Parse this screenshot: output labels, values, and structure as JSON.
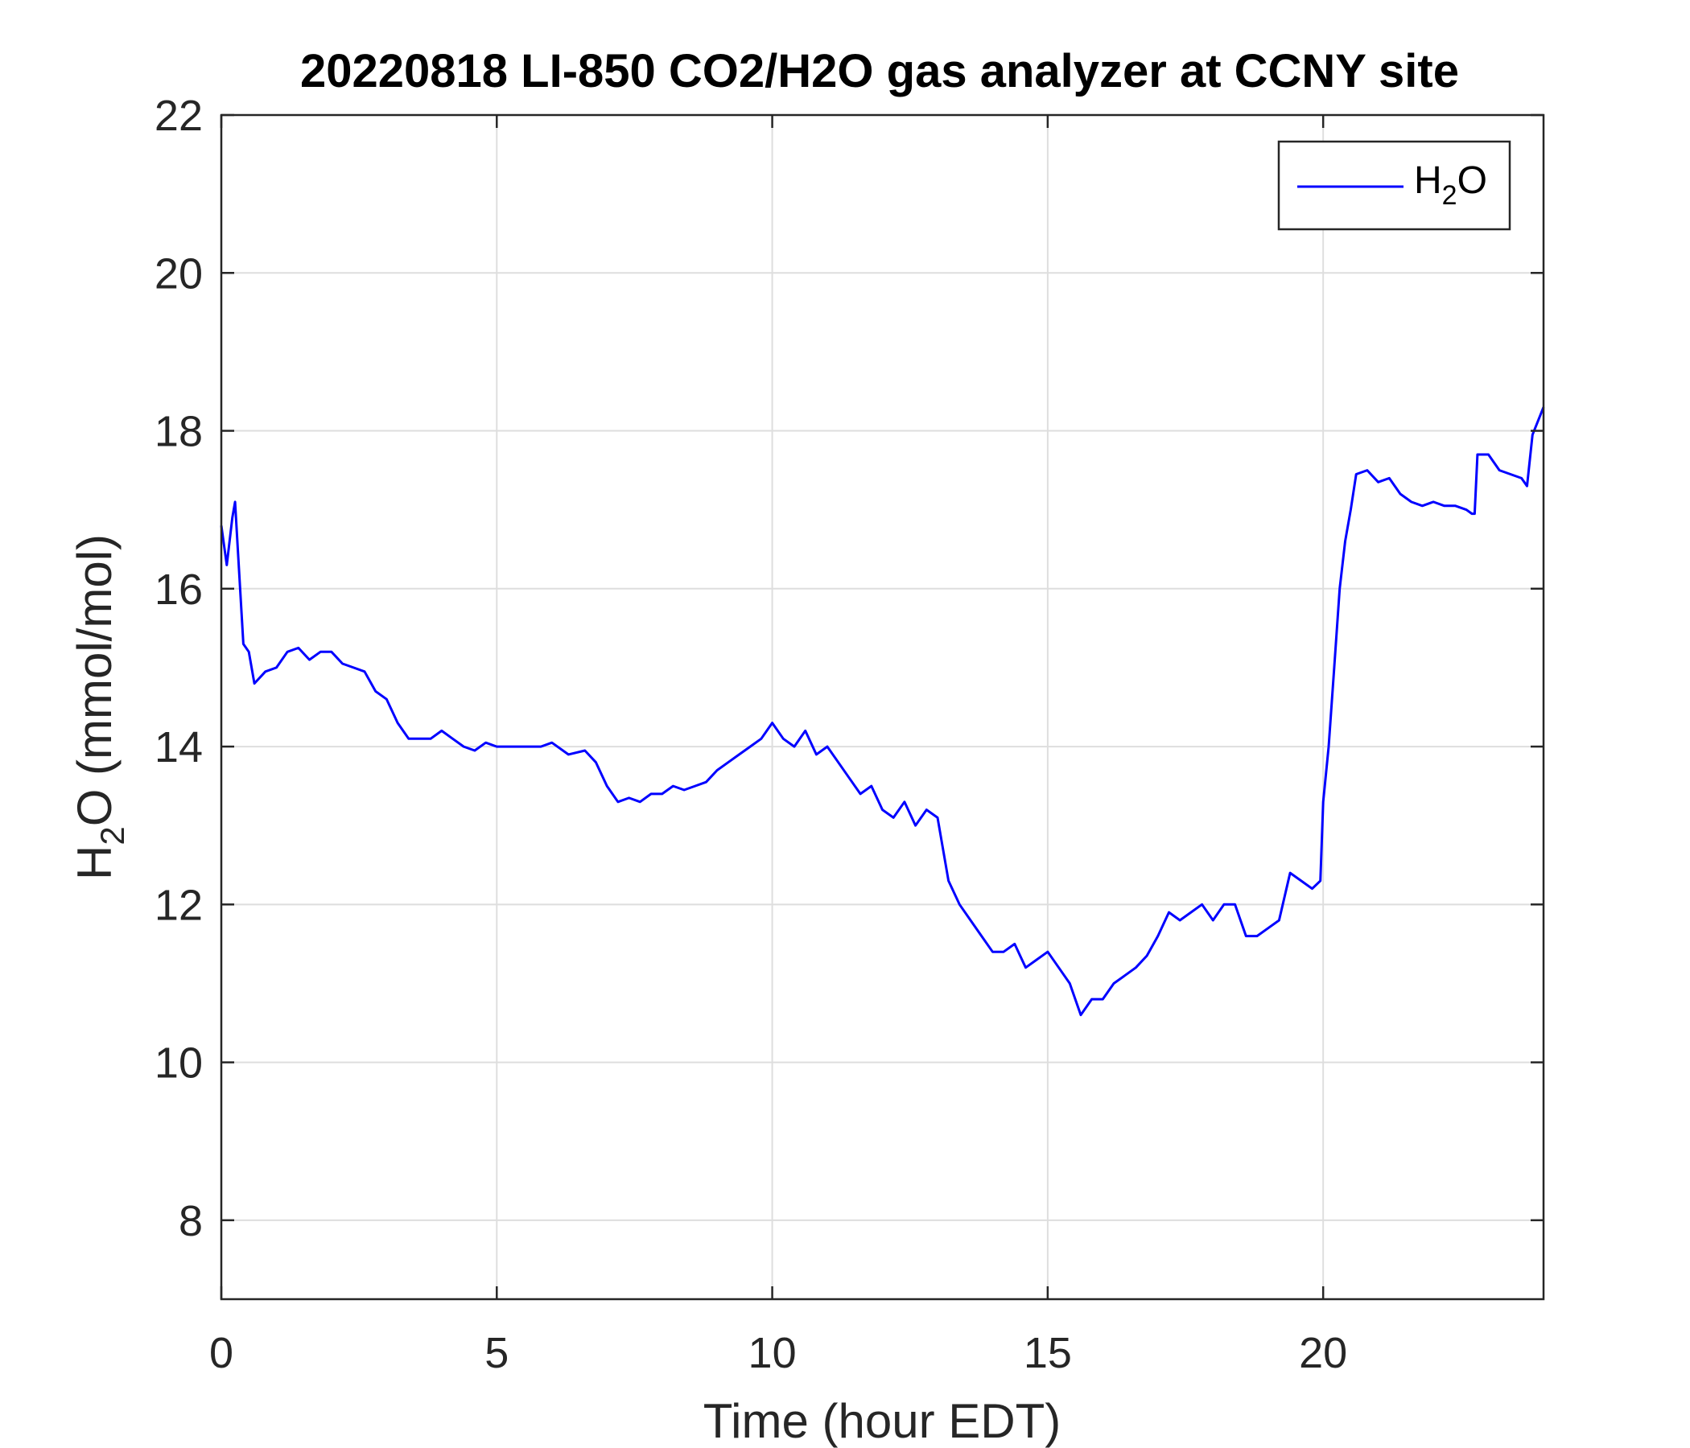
{
  "chart_data": {
    "type": "line",
    "title": "20220818 LI-850 CO2/H2O gas analyzer at CCNY site",
    "xlabel": "Time (hour EDT)",
    "ylabel_parts": [
      "H",
      "2",
      "O (mmol/mol)"
    ],
    "xlim": [
      0,
      24
    ],
    "ylim": [
      7,
      22
    ],
    "xticks": [
      0,
      5,
      10,
      15,
      20
    ],
    "yticks": [
      8,
      10,
      12,
      14,
      16,
      18,
      20,
      22
    ],
    "grid": true,
    "legend_position": "top-right",
    "series": [
      {
        "name_parts": [
          "H",
          "2",
          "O"
        ],
        "color": "#0000ff",
        "x": [
          0,
          0.1,
          0.2,
          0.25,
          0.3,
          0.4,
          0.5,
          0.6,
          0.8,
          1.0,
          1.2,
          1.4,
          1.6,
          1.8,
          2.0,
          2.2,
          2.4,
          2.6,
          2.8,
          3.0,
          3.2,
          3.4,
          3.6,
          3.8,
          4.0,
          4.2,
          4.4,
          4.6,
          4.8,
          5.0,
          5.2,
          5.5,
          5.8,
          6.0,
          6.3,
          6.6,
          6.8,
          7.0,
          7.2,
          7.4,
          7.6,
          7.8,
          8.0,
          8.2,
          8.4,
          8.6,
          8.8,
          9.0,
          9.2,
          9.4,
          9.6,
          9.8,
          10.0,
          10.2,
          10.4,
          10.6,
          10.8,
          11.0,
          11.2,
          11.4,
          11.6,
          11.8,
          12.0,
          12.2,
          12.4,
          12.6,
          12.8,
          13.0,
          13.2,
          13.4,
          13.6,
          13.8,
          14.0,
          14.2,
          14.4,
          14.6,
          14.8,
          15.0,
          15.2,
          15.4,
          15.6,
          15.8,
          16.0,
          16.2,
          16.4,
          16.6,
          16.8,
          17.0,
          17.2,
          17.4,
          17.6,
          17.8,
          18.0,
          18.2,
          18.4,
          18.6,
          18.8,
          19.0,
          19.2,
          19.4,
          19.6,
          19.8,
          19.95,
          20.0,
          20.1,
          20.2,
          20.3,
          20.4,
          20.5,
          20.6,
          20.8,
          21.0,
          21.2,
          21.4,
          21.6,
          21.8,
          22.0,
          22.2,
          22.4,
          22.6,
          22.7,
          22.75,
          22.8,
          23.0,
          23.2,
          23.4,
          23.6,
          23.7,
          23.8,
          24.0
        ],
        "y": [
          16.8,
          16.3,
          16.9,
          17.1,
          16.5,
          15.3,
          15.2,
          14.8,
          14.95,
          15.0,
          15.2,
          15.25,
          15.1,
          15.2,
          15.2,
          15.05,
          15.0,
          14.95,
          14.7,
          14.6,
          14.3,
          14.1,
          14.1,
          14.1,
          14.2,
          14.1,
          14.0,
          13.95,
          14.05,
          14.0,
          14.0,
          14.0,
          14.0,
          14.05,
          13.9,
          13.95,
          13.8,
          13.5,
          13.3,
          13.35,
          13.3,
          13.4,
          13.4,
          13.5,
          13.45,
          13.5,
          13.55,
          13.7,
          13.8,
          13.9,
          14.0,
          14.1,
          14.3,
          14.1,
          14.0,
          14.2,
          13.9,
          14.0,
          13.8,
          13.6,
          13.4,
          13.5,
          13.2,
          13.1,
          13.3,
          13.0,
          13.2,
          13.1,
          12.3,
          12.0,
          11.8,
          11.6,
          11.4,
          11.4,
          11.5,
          11.2,
          11.3,
          11.4,
          11.2,
          11.0,
          10.6,
          10.8,
          10.8,
          11.0,
          11.1,
          11.2,
          11.35,
          11.6,
          11.9,
          11.8,
          11.9,
          12.0,
          11.8,
          12.0,
          12.0,
          11.6,
          11.6,
          11.7,
          11.8,
          12.4,
          12.3,
          12.2,
          12.3,
          13.3,
          14.0,
          15.0,
          16.0,
          16.6,
          17.0,
          17.45,
          17.5,
          17.35,
          17.4,
          17.2,
          17.1,
          17.05,
          17.1,
          17.05,
          17.05,
          17.0,
          16.95,
          16.95,
          17.7,
          17.7,
          17.5,
          17.45,
          17.4,
          17.3,
          17.95,
          18.3
        ]
      }
    ]
  }
}
